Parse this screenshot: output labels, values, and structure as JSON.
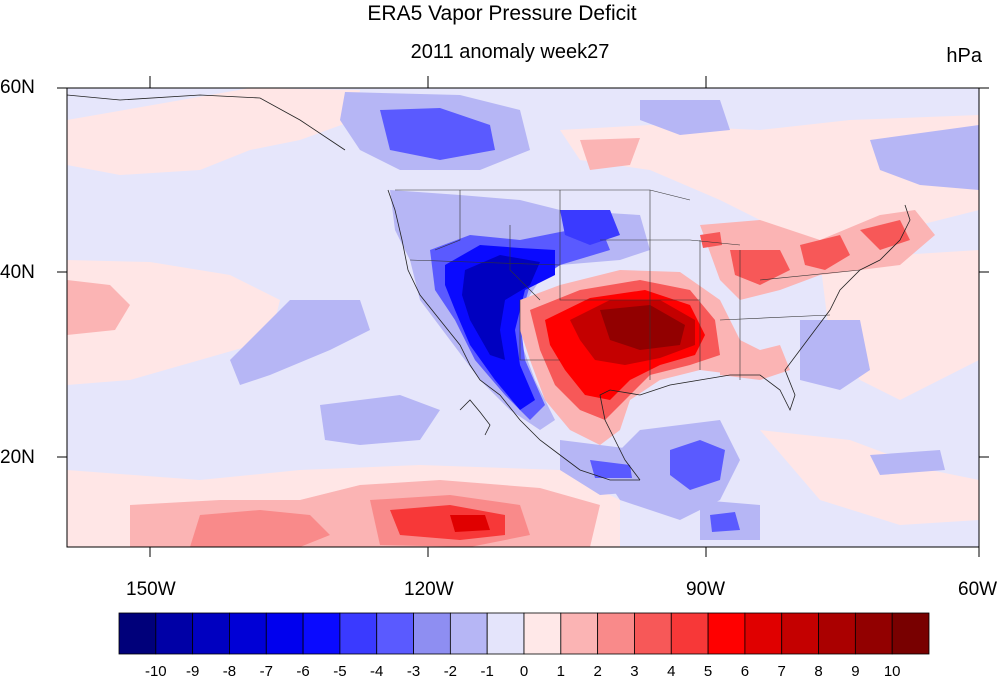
{
  "title": "ERA5 Vapor Pressure Deficit",
  "subtitle": "2011 anomaly week27",
  "units": "hPa",
  "lat_labels": [
    "60N",
    "40N",
    "20N"
  ],
  "lon_labels": [
    "150W",
    "120W",
    "90W",
    "60W"
  ],
  "colorbar": {
    "labels": [
      "-10",
      "-9",
      "-8",
      "-7",
      "-6",
      "-5",
      "-4",
      "-3",
      "-2",
      "-1",
      "0",
      "1",
      "2",
      "3",
      "4",
      "5",
      "6",
      "7",
      "8",
      "9",
      "10"
    ],
    "colors": [
      "#00007a",
      "#0000a6",
      "#0000c0",
      "#0000d6",
      "#0000ee",
      "#0a0aff",
      "#3a3aff",
      "#5a5aff",
      "#8e8ef2",
      "#b6b6f5",
      "#e4e4fb",
      "#ffe8e8",
      "#fbb4b4",
      "#f98a8a",
      "#f75858",
      "#f73838",
      "#ff0000",
      "#e00000",
      "#c40000",
      "#aa0000",
      "#920000",
      "#780000"
    ]
  },
  "map_extent": {
    "lon": [
      -160,
      -60
    ],
    "lat": [
      10,
      60
    ]
  }
}
